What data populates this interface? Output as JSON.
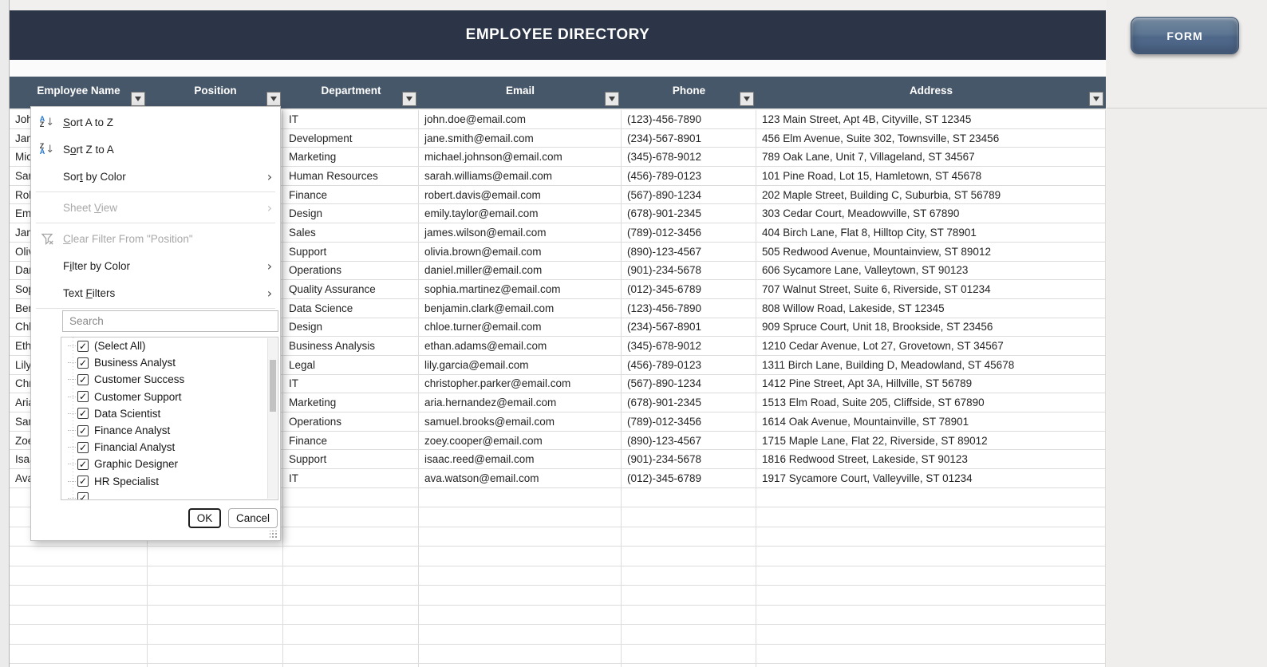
{
  "app": {
    "title": "EMPLOYEE DIRECTORY",
    "form_button_label": "FORM"
  },
  "table": {
    "columns": [
      {
        "label": "Employee Name"
      },
      {
        "label": "Position"
      },
      {
        "label": "Department"
      },
      {
        "label": "Email"
      },
      {
        "label": "Phone"
      },
      {
        "label": "Address"
      }
    ],
    "rows": [
      {
        "name": "John Doe",
        "position": "",
        "department": "IT",
        "email": "john.doe@email.com",
        "phone": "(123)-456-7890",
        "address": "123 Main Street, Apt 4B, Cityville, ST 12345"
      },
      {
        "name": "Jane Smith",
        "position": "",
        "department": "Development",
        "email": "jane.smith@email.com",
        "phone": "(234)-567-8901",
        "address": "456 Elm Avenue, Suite 302, Townsville, ST 23456"
      },
      {
        "name": "Michael Johnson",
        "position": "",
        "department": "Marketing",
        "email": "michael.johnson@email.com",
        "phone": "(345)-678-9012",
        "address": "789 Oak Lane, Unit 7, Villageland, ST 34567"
      },
      {
        "name": "Sarah Williams",
        "position": "",
        "department": "Human Resources",
        "email": "sarah.williams@email.com",
        "phone": "(456)-789-0123",
        "address": "101 Pine Road, Lot 15, Hamletown, ST 45678"
      },
      {
        "name": "Robert Davis",
        "position": "",
        "department": "Finance",
        "email": "robert.davis@email.com",
        "phone": "(567)-890-1234",
        "address": "202 Maple Street, Building C, Suburbia, ST 56789"
      },
      {
        "name": "Emily Taylor",
        "position": "",
        "department": "Design",
        "email": "emily.taylor@email.com",
        "phone": "(678)-901-2345",
        "address": "303 Cedar Court, Meadowville, ST 67890"
      },
      {
        "name": "James Wilson",
        "position": "",
        "department": "Sales",
        "email": "james.wilson@email.com",
        "phone": "(789)-012-3456",
        "address": "404 Birch Lane, Flat 8, Hilltop City, ST 78901"
      },
      {
        "name": "Olivia Brown",
        "position": "",
        "department": "Support",
        "email": "olivia.brown@email.com",
        "phone": "(890)-123-4567",
        "address": "505 Redwood Avenue, Mountainview, ST 89012"
      },
      {
        "name": "Daniel Miller",
        "position": "",
        "department": "Operations",
        "email": "daniel.miller@email.com",
        "phone": "(901)-234-5678",
        "address": "606 Sycamore Lane, Valleytown, ST 90123"
      },
      {
        "name": "Sophia Martinez",
        "position": "",
        "department": "Quality Assurance",
        "email": "sophia.martinez@email.com",
        "phone": "(012)-345-6789",
        "address": "707 Walnut Street, Suite 6, Riverside, ST 01234"
      },
      {
        "name": "Benjamin Clark",
        "position": "",
        "department": "Data Science",
        "email": "benjamin.clark@email.com",
        "phone": "(123)-456-7890",
        "address": "808 Willow Road, Lakeside, ST 12345"
      },
      {
        "name": "Chloe Turner",
        "position": "",
        "department": "Design",
        "email": "chloe.turner@email.com",
        "phone": "(234)-567-8901",
        "address": "909 Spruce Court, Unit 18, Brookside, ST 23456"
      },
      {
        "name": "Ethan Adams",
        "position": "",
        "department": "Business Analysis",
        "email": "ethan.adams@email.com",
        "phone": "(345)-678-9012",
        "address": "1210 Cedar Avenue, Lot 27, Grovetown, ST 34567"
      },
      {
        "name": "Lily Garcia",
        "position": "",
        "department": "Legal",
        "email": "lily.garcia@email.com",
        "phone": "(456)-789-0123",
        "address": "1311 Birch Lane, Building D, Meadowland, ST 45678"
      },
      {
        "name": "Christopher Parker",
        "position": "",
        "department": "IT",
        "email": "christopher.parker@email.com",
        "phone": "(567)-890-1234",
        "address": "1412 Pine Street, Apt 3A, Hillville, ST 56789"
      },
      {
        "name": "Aria Hernandez",
        "position": "",
        "department": "Marketing",
        "email": "aria.hernandez@email.com",
        "phone": "(678)-901-2345",
        "address": "1513 Elm Road, Suite 205, Cliffside, ST 67890"
      },
      {
        "name": "Samuel Brooks",
        "position": "",
        "department": "Operations",
        "email": "samuel.brooks@email.com",
        "phone": "(789)-012-3456",
        "address": "1614 Oak Avenue, Mountainville, ST 78901"
      },
      {
        "name": "Zoey Cooper",
        "position": "",
        "department": "Finance",
        "email": "zoey.cooper@email.com",
        "phone": "(890)-123-4567",
        "address": "1715 Maple Lane, Flat 22, Riverside, ST 89012"
      },
      {
        "name": "Isaac Reed",
        "position": "",
        "department": "Support",
        "email": "isaac.reed@email.com",
        "phone": "(901)-234-5678",
        "address": "1816 Redwood Street, Lakeside, ST 90123"
      },
      {
        "name": "Ava Watson",
        "position": "",
        "department": "IT",
        "email": "ava.watson@email.com",
        "phone": "(012)-345-6789",
        "address": "1917 Sycamore Court, Valleyville, ST 01234"
      }
    ]
  },
  "filter_menu": {
    "opened_on_column": "Position",
    "menu": [
      {
        "label": "Sort A to Z",
        "accel": 0,
        "icon": "sort-az",
        "enabled": true,
        "submenu": false
      },
      {
        "label": "Sort Z to A",
        "accel": 1,
        "icon": "sort-za",
        "enabled": true,
        "submenu": false
      },
      {
        "label": "Sort by Color",
        "accel": 3,
        "icon": "",
        "enabled": true,
        "submenu": true
      },
      {
        "separator": true
      },
      {
        "label": "Sheet View",
        "accel": 6,
        "icon": "",
        "enabled": false,
        "submenu": true
      },
      {
        "separator": true
      },
      {
        "label": "Clear Filter From \"Position\"",
        "accel": 0,
        "icon": "clear-filter",
        "enabled": false,
        "submenu": false
      },
      {
        "label": "Filter by Color",
        "accel": 1,
        "icon": "",
        "enabled": true,
        "submenu": true
      },
      {
        "label": "Text Filters",
        "accel": 5,
        "icon": "",
        "enabled": true,
        "submenu": true
      },
      {
        "separator": true
      }
    ],
    "search_placeholder": "Search",
    "options": [
      {
        "label": "(Select All)",
        "checked": true
      },
      {
        "label": "Business Analyst",
        "checked": true
      },
      {
        "label": "Customer Success",
        "checked": true
      },
      {
        "label": "Customer Support",
        "checked": true
      },
      {
        "label": "Data Scientist",
        "checked": true
      },
      {
        "label": "Finance Analyst",
        "checked": true
      },
      {
        "label": "Financial Analyst",
        "checked": true
      },
      {
        "label": "Graphic Designer",
        "checked": true
      },
      {
        "label": "HR Specialist",
        "checked": true
      },
      {
        "label": "",
        "checked": true,
        "clipped": true
      }
    ],
    "ok_label": "OK",
    "cancel_label": "Cancel"
  },
  "colors": {
    "title_bar": "#2b3547",
    "header_bar": "#47576a",
    "grid_line": "#dcdcdc",
    "form_button": "#5d7693",
    "sort_icon_blue": "#2577cc",
    "disabled_text": "#a8a8a8",
    "page_background": "#f1f0ef"
  }
}
